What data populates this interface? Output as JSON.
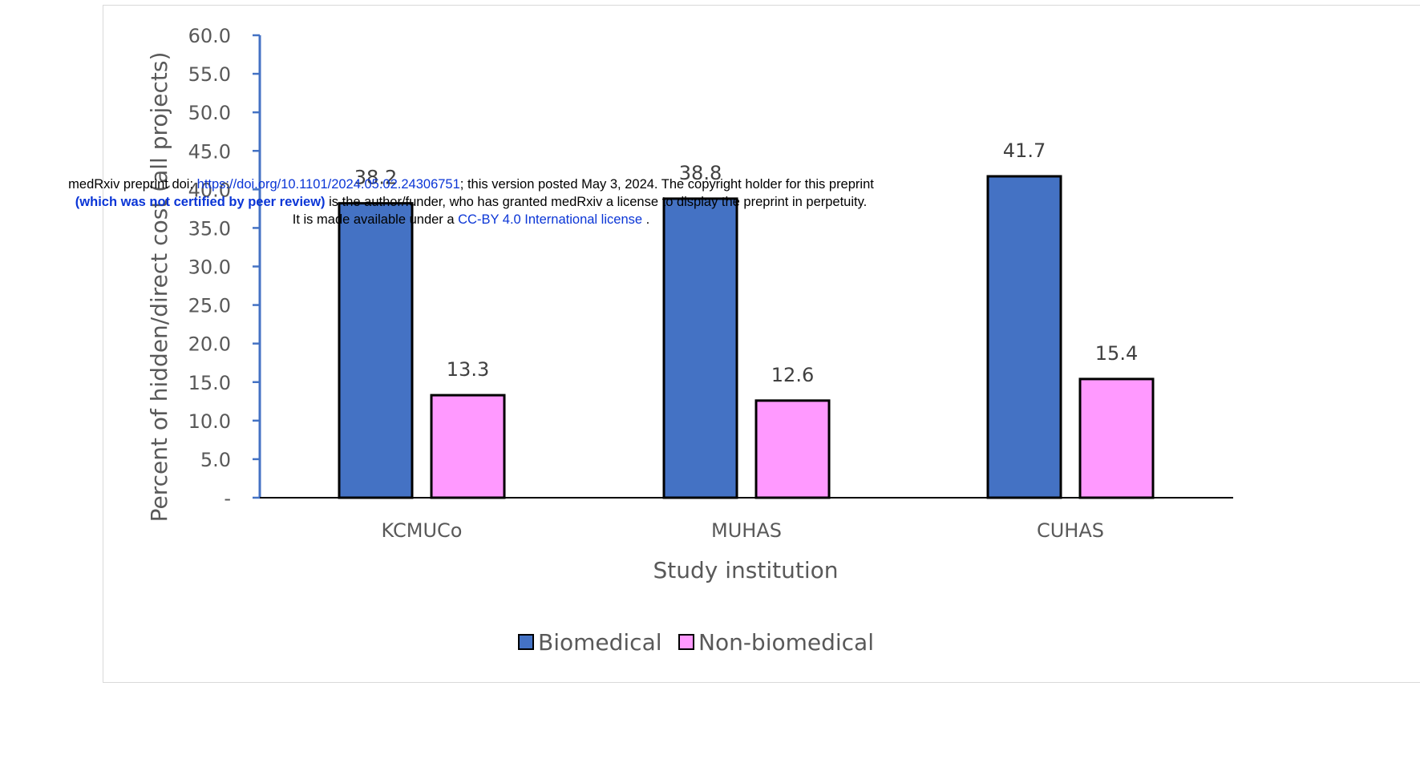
{
  "chart_data": {
    "type": "bar",
    "categories": [
      "KCMUCo",
      "MUHAS",
      "CUHAS"
    ],
    "series": [
      {
        "name": "Biomedical",
        "values": [
          38.2,
          38.8,
          41.7
        ],
        "color": "#4472c4"
      },
      {
        "name": "Non-biomedical",
        "values": [
          13.3,
          12.6,
          15.4
        ],
        "color": "#ff99ff"
      }
    ],
    "data_labels": [
      [
        "38.2",
        "38.8",
        "41.7"
      ],
      [
        "13.3",
        "12.6",
        "15.4"
      ]
    ],
    "xlabel": "Study institution",
    "ylabel": "Percent of hidden/direct cost (all projects)",
    "ylim": [
      0,
      60
    ],
    "yticks": [
      "-",
      "5.0",
      "10.0",
      "15.0",
      "20.0",
      "25.0",
      "30.0",
      "35.0",
      "40.0",
      "45.0",
      "50.0",
      "55.0",
      "60.0"
    ],
    "legend_position": "bottom",
    "grid": false,
    "axis_color": "#4472c4"
  },
  "watermark": {
    "line1_prefix": "medRxiv preprint doi: ",
    "doi_link": "https://doi.org/10.1101/2024.05.02.24306751",
    "line1_suffix": "; this version posted May 3, 2024. The copyright holder for this preprint",
    "line2_bold": "(which was not certified by peer review)",
    "line2_suffix": " is the author/funder, who has granted medRxiv a license to display the preprint in perpetuity.",
    "line3_prefix": "It is made available under a ",
    "license_link": "CC-BY 4.0 International license",
    "line3_suffix": " ."
  }
}
